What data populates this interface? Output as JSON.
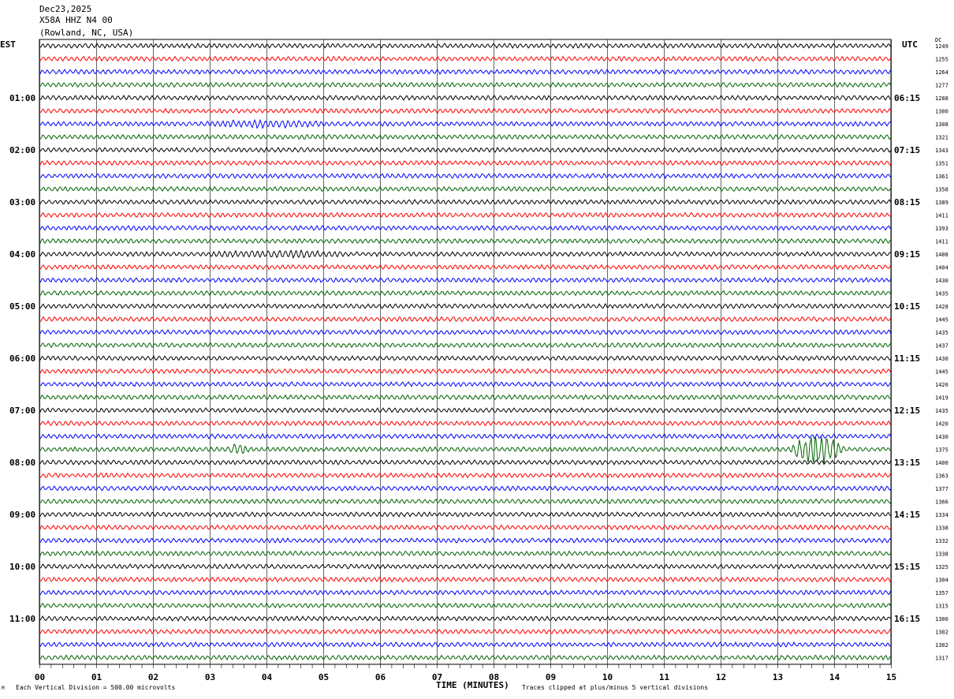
{
  "header": {
    "date": "Dec23,2025",
    "station": "X58A HHZ N4 00",
    "location": "(Rowland, NC, USA)"
  },
  "left_tz": "EST",
  "right_tz": "UTC",
  "dc_label": "DC",
  "chart_data": {
    "type": "line",
    "title": "Dec23,2025 X58A HHZ N4 00 (Rowland, NC, USA)",
    "xlabel": "TIME (MINUTES)",
    "x_ticks": [
      "00",
      "01",
      "02",
      "03",
      "04",
      "05",
      "06",
      "07",
      "08",
      "09",
      "10",
      "11",
      "12",
      "13",
      "14",
      "15"
    ],
    "xlim": [
      0,
      15
    ],
    "rows_per_hour": 4,
    "row_colors": [
      "#000000",
      "#ff0000",
      "#0000ff",
      "#006400"
    ],
    "est_labels": [
      "01:00",
      "02:00",
      "03:00",
      "04:00",
      "05:00",
      "06:00",
      "07:00",
      "08:00",
      "09:00",
      "10:00",
      "11:00"
    ],
    "utc_labels": [
      "06:15",
      "07:15",
      "08:15",
      "09:15",
      "10:15",
      "11:15",
      "12:15",
      "13:15",
      "14:15",
      "15:15",
      "16:15"
    ],
    "dc_values": [
      1249,
      1255,
      1264,
      1277,
      1288,
      1300,
      1308,
      1321,
      1343,
      1351,
      1361,
      1358,
      1389,
      1411,
      1393,
      1411,
      1408,
      1404,
      1430,
      1435,
      1428,
      1445,
      1435,
      1437,
      1430,
      1445,
      1426,
      1419,
      1435,
      1420,
      1430,
      1375,
      1400,
      1363,
      1377,
      1366,
      1334,
      1338,
      1332,
      1338,
      1325,
      1304,
      1357,
      1315,
      1300,
      1302,
      1302,
      1317
    ],
    "events": [
      {
        "row": 6,
        "start_min": 2.8,
        "end_min": 5.2,
        "amplitude": 2.0
      },
      {
        "row": 16,
        "start_min": 2.8,
        "end_min": 5.6,
        "amplitude": 1.8
      },
      {
        "row": 31,
        "start_min": 3.3,
        "end_min": 3.7,
        "amplitude": 4
      },
      {
        "row": 31,
        "start_min": 13.2,
        "end_min": 14.2,
        "amplitude": 14
      }
    ]
  },
  "footer": {
    "scale": "Each Vertical Division =  500.00 microvolts",
    "clip": "Traces clipped at plus/minus 5 vertical divisions",
    "corner": "M"
  }
}
